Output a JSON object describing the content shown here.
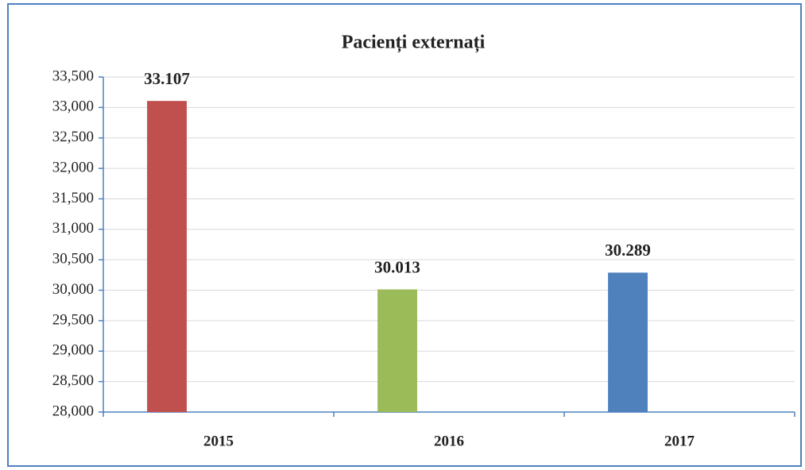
{
  "chart_data": {
    "type": "bar",
    "title": "Pacienți externați",
    "categories": [
      "2015",
      "2016",
      "2017"
    ],
    "values": [
      33107,
      30013,
      30289
    ],
    "value_labels": [
      "33.107",
      "30.013",
      "30.289"
    ],
    "colors": [
      "#c0504d",
      "#9bbb59",
      "#4f81bd"
    ],
    "ylim": [
      28000,
      33500
    ],
    "yticks": [
      {
        "value": 28000,
        "label": "28,000"
      },
      {
        "value": 28500,
        "label": "28,500"
      },
      {
        "value": 29000,
        "label": "29,000"
      },
      {
        "value": 29500,
        "label": "29,500"
      },
      {
        "value": 30000,
        "label": "30,000"
      },
      {
        "value": 30500,
        "label": "30,500"
      },
      {
        "value": 31000,
        "label": "31,000"
      },
      {
        "value": 31500,
        "label": "31,500"
      },
      {
        "value": 32000,
        "label": "32,000"
      },
      {
        "value": 32500,
        "label": "32,500"
      },
      {
        "value": 33000,
        "label": "33,000"
      },
      {
        "value": 33500,
        "label": "33,500"
      }
    ],
    "grid": true
  }
}
